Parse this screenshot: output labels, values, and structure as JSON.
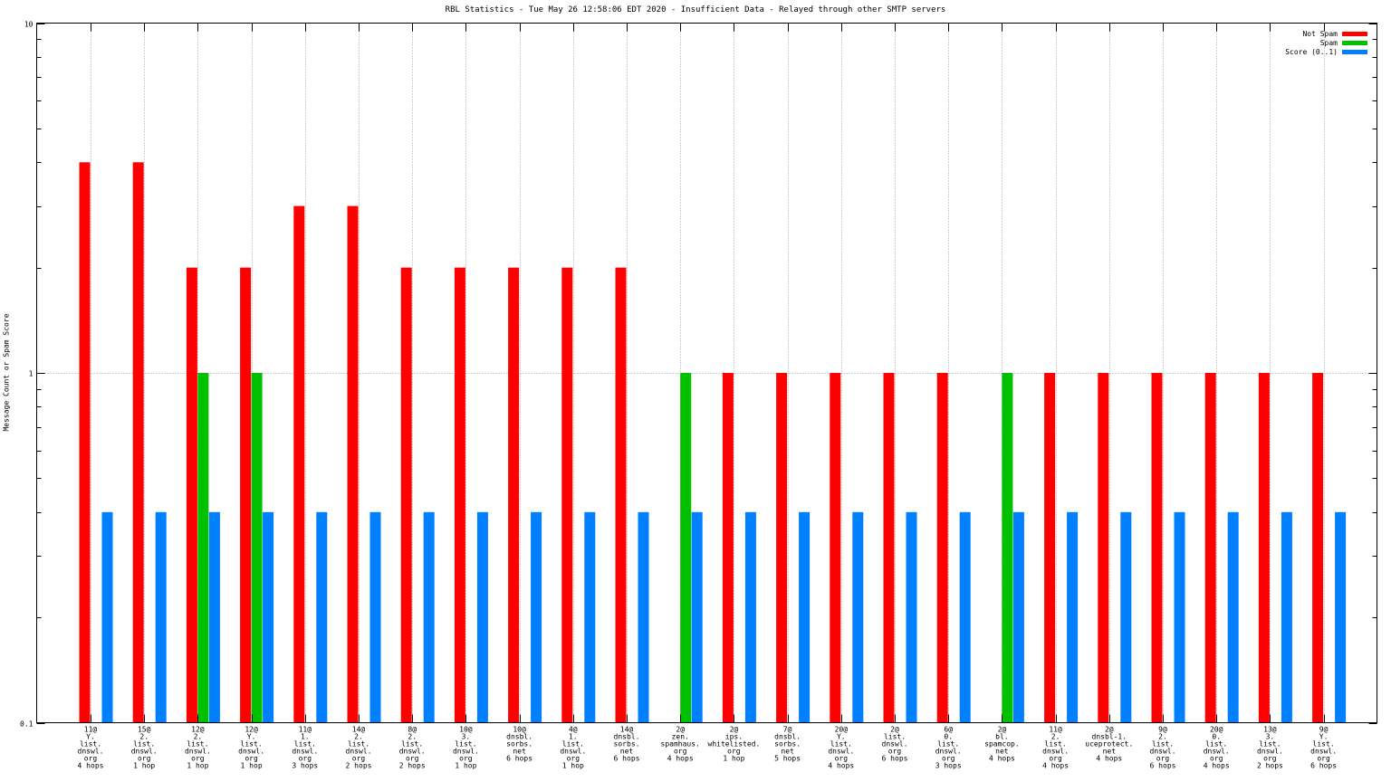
{
  "chart_data": {
    "type": "bar",
    "title": "RBL Statistics - Tue May 26 12:58:06 EDT 2020 - Insufficient Data - Relayed through other SMTP servers",
    "xlabel": "",
    "ylabel": "Message Count or Spam Score",
    "yscale": "log",
    "ylim": [
      0.1,
      10
    ],
    "yticks": [
      "10",
      "1",
      "0.1"
    ],
    "grid": true,
    "legend_position": "top-right",
    "categories": [
      [
        "11@",
        "Y.",
        "list.",
        "dnswl.",
        "org",
        "4 hops"
      ],
      [
        "15@",
        "2.",
        "list.",
        "dnswl.",
        "org",
        "1 hop"
      ],
      [
        "12@",
        "2.",
        "list.",
        "dnswl.",
        "org",
        "1 hop"
      ],
      [
        "12@",
        "Y.",
        "list.",
        "dnswl.",
        "org",
        "1 hop"
      ],
      [
        "11@",
        "1.",
        "list.",
        "dnswl.",
        "org",
        "3 hops"
      ],
      [
        "14@",
        "2.",
        "list.",
        "dnswl.",
        "org",
        "2 hops"
      ],
      [
        "8@",
        "2.",
        "list.",
        "dnswl.",
        "org",
        "2 hops"
      ],
      [
        "10@",
        "3.",
        "list.",
        "dnswl.",
        "org",
        "1 hop"
      ],
      [
        "10@",
        "dnsbl.",
        "sorbs.",
        "net",
        "6 hops"
      ],
      [
        "4@",
        "1.",
        "list.",
        "dnswl.",
        "org",
        "1 hop"
      ],
      [
        "14@",
        "dnsbl.",
        "sorbs.",
        "net",
        "6 hops"
      ],
      [
        "2@",
        "zen.",
        "spamhaus.",
        "org",
        "4 hops"
      ],
      [
        "2@",
        "ips.",
        "whitelisted.",
        "org",
        "1 hop"
      ],
      [
        "7@",
        "dnsbl.",
        "sorbs.",
        "net",
        "5 hops"
      ],
      [
        "20@",
        "Y.",
        "list.",
        "dnswl.",
        "org",
        "4 hops"
      ],
      [
        "2@",
        "list.",
        "dnswl.",
        "org",
        "6 hops"
      ],
      [
        "6@",
        "0.",
        "list.",
        "dnswl.",
        "org",
        "3 hops"
      ],
      [
        "2@",
        "bl.",
        "spamcop.",
        "net",
        "4 hops"
      ],
      [
        "11@",
        "2.",
        "list.",
        "dnswl.",
        "org",
        "4 hops"
      ],
      [
        "2@",
        "dnsbl-1.",
        "uceprotect.",
        "net",
        "4 hops"
      ],
      [
        "9@",
        "2.",
        "list.",
        "dnswl.",
        "org",
        "6 hops"
      ],
      [
        "20@",
        "0.",
        "list.",
        "dnswl.",
        "org",
        "4 hops"
      ],
      [
        "13@",
        "3.",
        "list.",
        "dnswl.",
        "org",
        "2 hops"
      ],
      [
        "9@",
        "Y.",
        "list.",
        "dnswl.",
        "org",
        "6 hops"
      ]
    ],
    "series": [
      {
        "name": "Not Spam",
        "color": "#ff0000",
        "values": [
          4,
          4,
          2,
          2,
          3,
          3,
          2,
          2,
          2,
          2,
          2,
          0,
          1,
          1,
          1,
          1,
          1,
          0,
          1,
          1,
          1,
          1,
          1,
          1
        ]
      },
      {
        "name": "Spam",
        "color": "#00c000",
        "values": [
          0,
          0,
          1,
          1,
          0,
          0,
          0,
          0,
          0,
          0,
          0,
          1,
          0,
          0,
          0,
          0,
          0,
          1,
          0,
          0,
          0,
          0,
          0,
          0
        ]
      },
      {
        "name": "Score (0..1)",
        "color": "#0080ff",
        "values": [
          0.4,
          0.4,
          0.4,
          0.4,
          0.4,
          0.4,
          0.4,
          0.4,
          0.4,
          0.4,
          0.4,
          0.4,
          0.4,
          0.4,
          0.4,
          0.4,
          0.4,
          0.4,
          0.4,
          0.4,
          0.4,
          0.4,
          0.4,
          0.4
        ]
      }
    ]
  }
}
